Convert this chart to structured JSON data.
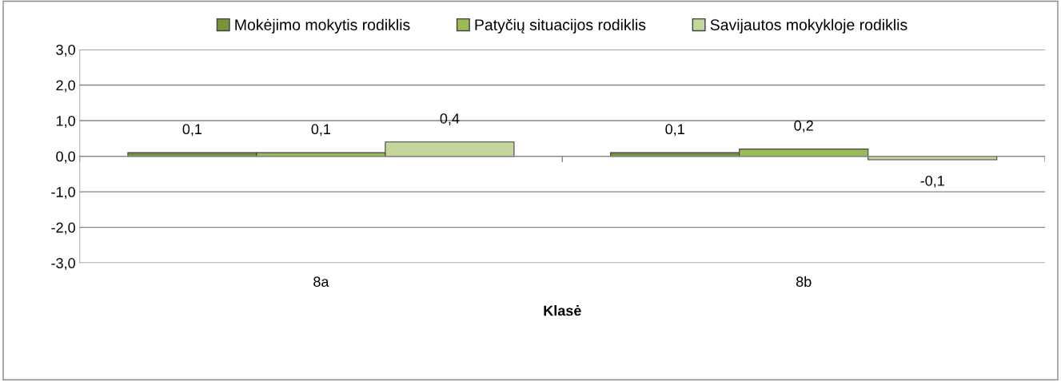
{
  "chart_data": {
    "type": "bar",
    "xlabel": "Klasė",
    "categories": [
      "8a",
      "8b"
    ],
    "series": [
      {
        "name": "Mokėjimo mokytis rodiklis",
        "color": "#77933c",
        "values": [
          0.1,
          0.1
        ],
        "value_labels": [
          "0,1",
          "0,1"
        ]
      },
      {
        "name": "Patyčių situacijos rodiklis",
        "color": "#9bbb59",
        "values": [
          0.1,
          0.2
        ],
        "value_labels": [
          "0,1",
          "0,2"
        ]
      },
      {
        "name": "Savijautos mokykloje rodiklis",
        "color": "#c3d69b",
        "values": [
          0.4,
          -0.1
        ],
        "value_labels": [
          "0,4",
          "-0,1"
        ]
      }
    ],
    "ylim": [
      -3,
      3
    ],
    "yticks": [
      {
        "value": -3,
        "label": "-3,0"
      },
      {
        "value": -2,
        "label": "-2,0"
      },
      {
        "value": -1,
        "label": "-1,0"
      },
      {
        "value": 0,
        "label": "0,0"
      },
      {
        "value": 1,
        "label": "1,0"
      },
      {
        "value": 2,
        "label": "2,0"
      },
      {
        "value": 3,
        "label": "3,0"
      }
    ],
    "grid": "y",
    "legend": "top"
  }
}
